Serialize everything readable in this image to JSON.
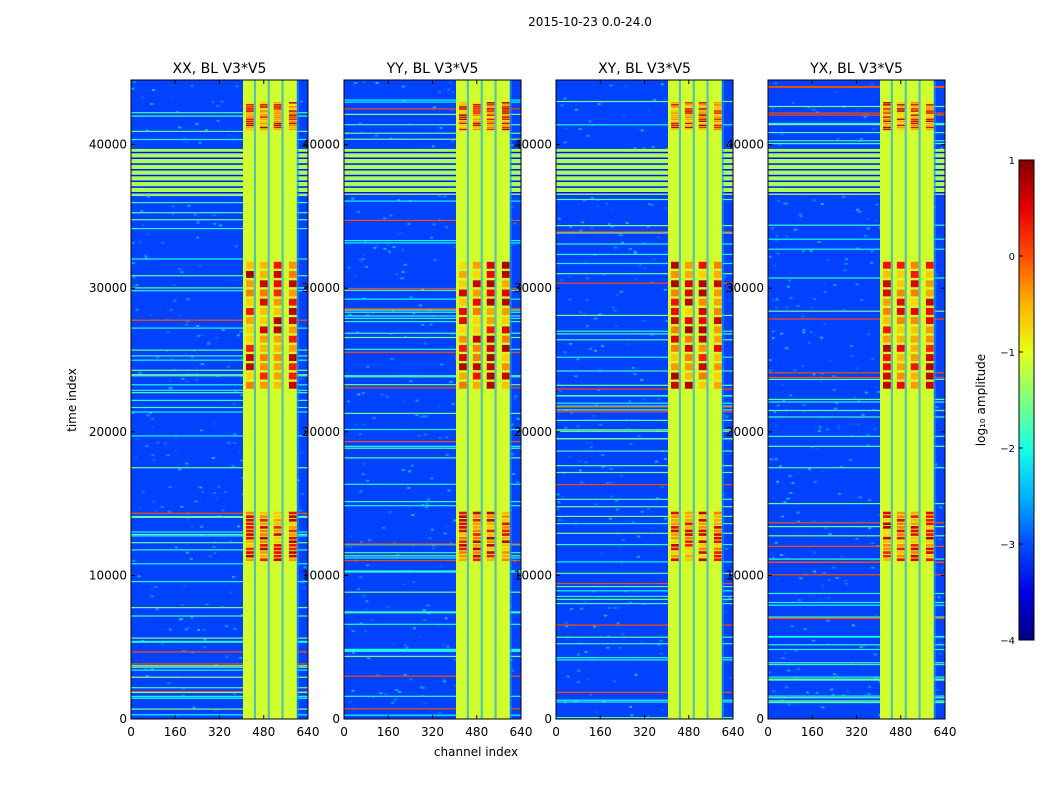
{
  "suptitle": "2015-10-23 0.0-24.0",
  "chart_data": {
    "type": "heatmap",
    "xlabel": "channel index",
    "ylabel": "time index",
    "xlim": [
      0,
      640
    ],
    "ylim": [
      0,
      44500
    ],
    "xticks": [
      0,
      160,
      320,
      480,
      640
    ],
    "yticks": [
      0,
      10000,
      20000,
      30000,
      40000
    ],
    "panels": [
      {
        "title": "XX, BL V3*V5"
      },
      {
        "title": "YY, BL V3*V5"
      },
      {
        "title": "XY, BL V3*V5"
      },
      {
        "title": "YX, BL V3*V5"
      }
    ],
    "signal_band_channels": [
      405,
      600
    ],
    "signal_columns": [
      430,
      480,
      530,
      585
    ],
    "saturated_time_range": [
      36500,
      39700
    ],
    "strong_time_ranges": [
      [
        11000,
        14500
      ],
      [
        23000,
        32000
      ],
      [
        41000,
        43000
      ]
    ],
    "colorbar": {
      "label": "log₁₀ amplitude",
      "range": [
        -4,
        1
      ],
      "ticks": [
        "1",
        "0",
        "−1",
        "−2",
        "−3",
        "−4"
      ],
      "colormap": "jet"
    }
  }
}
